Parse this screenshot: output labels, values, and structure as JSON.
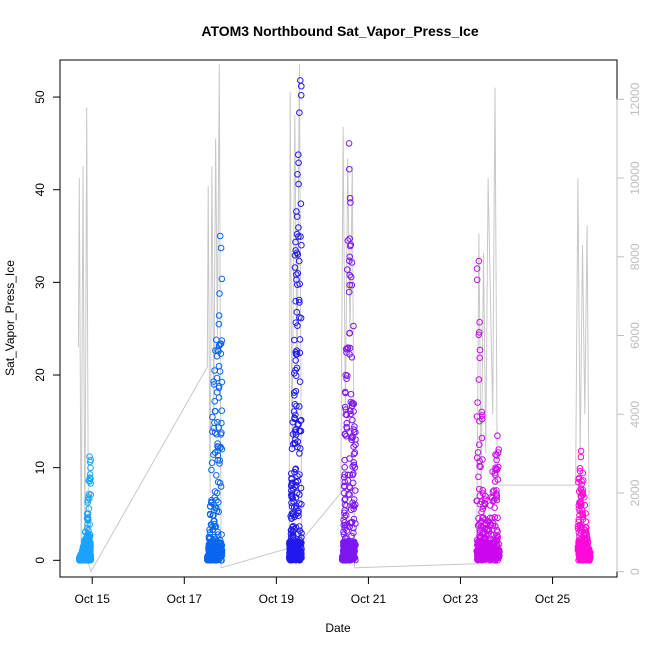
{
  "chart_data": {
    "type": "scatter",
    "title": "ATOM3 Northbound Sat_Vapor_Press_Ice",
    "xlabel": "Date",
    "ylabel": "Sat_Vapor_Press_Ice",
    "xlim": [
      14.3,
      26.4
    ],
    "ylim": [
      -1.8,
      54.0
    ],
    "y2lim": [
      -135,
      13000
    ],
    "x_ticks": [
      15,
      17,
      19,
      21,
      23,
      25
    ],
    "x_tick_labels": [
      "Oct 15",
      "Oct 17",
      "Oct 19",
      "Oct 21",
      "Oct 23",
      "Oct 25"
    ],
    "y_ticks": [
      0,
      10,
      20,
      30,
      40,
      50
    ],
    "y2_ticks": [
      0,
      2000,
      4000,
      6000,
      8000,
      10000,
      12000
    ],
    "grid": false,
    "series": [
      {
        "color": "#1aa3ff",
        "x_range": [
          14.72,
          14.97
        ],
        "cluster_y": [
          [
            14.72,
            0.3
          ],
          [
            14.78,
            1.0
          ],
          [
            14.82,
            2.0
          ],
          [
            14.86,
            3.7
          ],
          [
            14.9,
            6.5
          ],
          [
            14.94,
            11.2
          ]
        ],
        "max": 11.2
      },
      {
        "color": "#0a66f0",
        "x_range": [
          17.5,
          17.82
        ],
        "cluster_y": [
          [
            17.52,
            0.5
          ],
          [
            17.58,
            8.0
          ],
          [
            17.62,
            19.0
          ],
          [
            17.66,
            22.0
          ],
          [
            17.7,
            26.0
          ],
          [
            17.74,
            30.0
          ],
          [
            17.78,
            35.0
          ]
        ],
        "max": 35.0
      },
      {
        "color": "#2219f0",
        "x_range": [
          19.28,
          19.55
        ],
        "cluster_y": [
          [
            19.3,
            2.0
          ],
          [
            19.36,
            20.0
          ],
          [
            19.4,
            33.0
          ],
          [
            19.44,
            40.5
          ],
          [
            19.48,
            46.5
          ],
          [
            19.52,
            51.8
          ]
        ],
        "max": 51.8
      },
      {
        "color": "#7e17f2",
        "x_range": [
          20.43,
          20.72
        ],
        "cluster_y": [
          [
            20.45,
            0.5
          ],
          [
            20.5,
            20.0
          ],
          [
            20.55,
            35.0
          ],
          [
            20.58,
            45.0
          ],
          [
            20.62,
            40.0
          ],
          [
            20.66,
            33.0
          ],
          [
            20.7,
            14.0
          ]
        ],
        "max": 45.0
      },
      {
        "color": "#cc08f0",
        "x_range": [
          23.35,
          23.85
        ],
        "cluster_y": [
          [
            23.4,
            32.3
          ],
          [
            23.45,
            20.0
          ],
          [
            23.5,
            12.0
          ],
          [
            23.6,
            4.0
          ],
          [
            23.7,
            10.0
          ],
          [
            23.78,
            13.7
          ]
        ],
        "max": 32.3
      },
      {
        "color": "#ff0ad8",
        "x_range": [
          25.55,
          25.82
        ],
        "cluster_y": [
          [
            25.58,
            10.5
          ],
          [
            25.62,
            11.8
          ],
          [
            25.68,
            9.0
          ],
          [
            25.74,
            3.0
          ],
          [
            25.8,
            1.0
          ]
        ],
        "max": 11.8
      }
    ],
    "secondary_line": {
      "color": "#c8c8c8",
      "description_axis": "right",
      "points": [
        [
          14.7,
          5700
        ],
        [
          14.72,
          10000
        ],
        [
          14.76,
          300
        ],
        [
          14.8,
          10300
        ],
        [
          14.84,
          600
        ],
        [
          14.88,
          11800
        ],
        [
          14.92,
          200
        ],
        [
          14.97,
          0
        ],
        [
          17.5,
          5200
        ],
        [
          17.52,
          9800
        ],
        [
          17.56,
          2000
        ],
        [
          17.6,
          10300
        ],
        [
          17.64,
          4000
        ],
        [
          17.68,
          11000
        ],
        [
          17.72,
          6000
        ],
        [
          17.76,
          12900
        ],
        [
          17.8,
          100
        ],
        [
          19.28,
          600
        ],
        [
          19.3,
          12200
        ],
        [
          19.34,
          3000
        ],
        [
          19.4,
          11600
        ],
        [
          19.45,
          5000
        ],
        [
          19.5,
          12900
        ],
        [
          19.55,
          800
        ],
        [
          20.4,
          2000
        ],
        [
          20.45,
          11300
        ],
        [
          20.5,
          4000
        ],
        [
          20.55,
          10500
        ],
        [
          20.6,
          6000
        ],
        [
          20.65,
          10300
        ],
        [
          20.7,
          100
        ],
        [
          23.35,
          200
        ],
        [
          23.4,
          8600
        ],
        [
          23.45,
          2000
        ],
        [
          23.5,
          8100
        ],
        [
          23.55,
          3000
        ],
        [
          23.6,
          10000
        ],
        [
          23.7,
          4000
        ],
        [
          23.75,
          12300
        ],
        [
          23.8,
          2200
        ],
        [
          25.5,
          2200
        ],
        [
          25.55,
          10000
        ],
        [
          25.6,
          3000
        ],
        [
          25.65,
          8300
        ],
        [
          25.7,
          4000
        ],
        [
          25.75,
          8800
        ],
        [
          25.8,
          500
        ]
      ]
    }
  }
}
